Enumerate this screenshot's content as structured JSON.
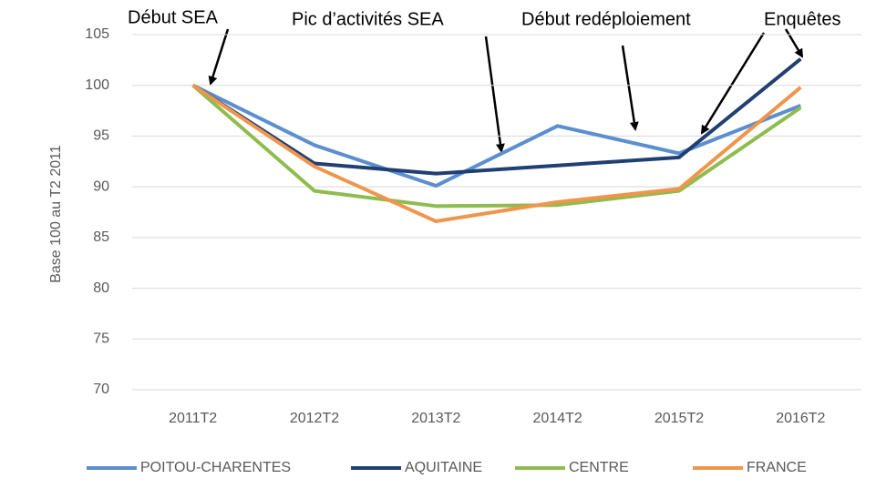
{
  "chart_data": {
    "type": "line",
    "y_label": "Base 100 au T2 2011",
    "annotations": [
      "Début SEA",
      "Pic d’activités SEA",
      "Début redéploiement",
      "Enquêtes"
    ],
    "categories": [
      "2011T2",
      "2012T2",
      "2013T2",
      "2014T2",
      "2015T2",
      "2016T2"
    ],
    "series": [
      {
        "name": "POITOU-CHARENTES",
        "color": "#5b8fd0",
        "values": [
          100,
          94.1,
          90.1,
          96,
          93.3,
          98
        ]
      },
      {
        "name": "AQUITAINE",
        "color": "#203f72",
        "values": [
          100,
          92.3,
          91.3,
          92.1,
          92.9,
          102.6
        ]
      },
      {
        "name": "CENTRE",
        "color": "#8fbc4f",
        "values": [
          100,
          89.6,
          88.1,
          88.2,
          89.6,
          97.8
        ]
      },
      {
        "name": "FRANCE",
        "color": "#f0954c",
        "values": [
          100,
          92,
          86.6,
          88.5,
          89.8,
          99.8
        ]
      }
    ],
    "ylim": [
      70,
      105
    ],
    "yticks": [
      70,
      75,
      80,
      85,
      90,
      95,
      100,
      105
    ],
    "grid": true,
    "legend": "bottom"
  }
}
